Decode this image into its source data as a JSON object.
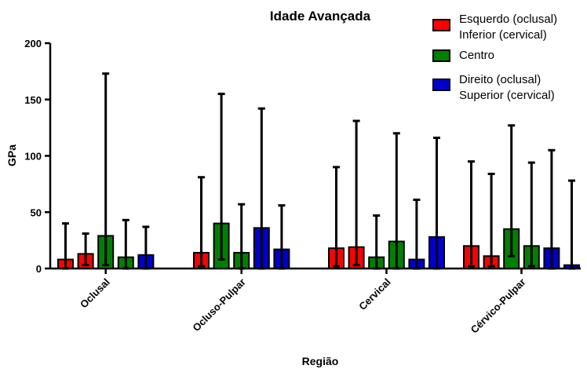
{
  "chart_data": {
    "type": "bar",
    "title": "Idade Avançada",
    "xlabel": "Região",
    "ylabel": "GPa",
    "ylim": [
      0,
      200
    ],
    "yticks": [
      0,
      50,
      100,
      150,
      200
    ],
    "grid": false,
    "legend_position": "top-right",
    "categories": [
      "Oclusal",
      "Ocluso-Pulpar",
      "Cervical",
      "Cérvico-Pulpar"
    ],
    "legend": [
      {
        "lines": [
          "Esquerdo (oclusal)",
          "Inferior (cervical)"
        ],
        "color": "#ff0000"
      },
      {
        "lines": [
          "Centro"
        ],
        "color": "#008000"
      },
      {
        "lines": [
          "Direito (oclusal)",
          "Superior (cervical)"
        ],
        "color": "#0000cc"
      }
    ],
    "groups": [
      {
        "category": "Oclusal",
        "bars": [
          {
            "series": "Esquerdo (oclusal) / Inferior (cervical)",
            "color": "#ff0000",
            "value": 8,
            "low": 0,
            "high": 40
          },
          {
            "series": "Esquerdo (oclusal) / Inferior (cervical)",
            "color": "#ff0000",
            "value": 13,
            "low": 3,
            "high": 31
          },
          {
            "series": "Centro",
            "color": "#008000",
            "value": 29,
            "low": 3,
            "high": 173
          },
          {
            "series": "Centro",
            "color": "#008000",
            "value": 10,
            "low": 0,
            "high": 43
          },
          {
            "series": "Direito (oclusal) / Superior (cervical)",
            "color": "#0000cc",
            "value": 12,
            "low": 0,
            "high": 37
          }
        ]
      },
      {
        "category": "Ocluso-Pulpar",
        "bars": [
          {
            "series": "Esquerdo (oclusal) / Inferior (cervical)",
            "color": "#ff0000",
            "value": 14,
            "low": 2,
            "high": 81
          },
          {
            "series": "Centro",
            "color": "#008000",
            "value": 40,
            "low": 8,
            "high": 155
          },
          {
            "series": "Centro",
            "color": "#008000",
            "value": 14,
            "low": 0,
            "high": 57
          },
          {
            "series": "Direito (oclusal) / Superior (cervical)",
            "color": "#0000cc",
            "value": 36,
            "low": 0,
            "high": 142
          },
          {
            "series": "Direito (oclusal) / Superior (cervical)",
            "color": "#0000cc",
            "value": 17,
            "low": 0,
            "high": 56
          }
        ]
      },
      {
        "category": "Cervical",
        "bars": [
          {
            "series": "Esquerdo (oclusal) / Inferior (cervical)",
            "color": "#ff0000",
            "value": 18,
            "low": 2,
            "high": 90
          },
          {
            "series": "Esquerdo (oclusal) / Inferior (cervical)",
            "color": "#ff0000",
            "value": 19,
            "low": 3,
            "high": 131
          },
          {
            "series": "Centro",
            "color": "#008000",
            "value": 10,
            "low": 0,
            "high": 47
          },
          {
            "series": "Centro",
            "color": "#008000",
            "value": 24,
            "low": 0,
            "high": 120
          },
          {
            "series": "Direito (oclusal) / Superior (cervical)",
            "color": "#0000cc",
            "value": 8,
            "low": 0,
            "high": 61
          },
          {
            "series": "Direito (oclusal) / Superior (cervical)",
            "color": "#0000cc",
            "value": 28,
            "low": 0,
            "high": 116
          }
        ]
      },
      {
        "category": "Cérvico-Pulpar",
        "bars": [
          {
            "series": "Esquerdo (oclusal) / Inferior (cervical)",
            "color": "#ff0000",
            "value": 20,
            "low": 2,
            "high": 95
          },
          {
            "series": "Esquerdo (oclusal) / Inferior (cervical)",
            "color": "#ff0000",
            "value": 11,
            "low": 2,
            "high": 84
          },
          {
            "series": "Centro",
            "color": "#008000",
            "value": 35,
            "low": 11,
            "high": 127
          },
          {
            "series": "Centro",
            "color": "#008000",
            "value": 20,
            "low": 2,
            "high": 94
          },
          {
            "series": "Direito (oclusal) / Superior (cervical)",
            "color": "#0000cc",
            "value": 18,
            "low": 0,
            "high": 105
          },
          {
            "series": "Direito (oclusal) / Superior (cervical)",
            "color": "#0000cc",
            "value": 3,
            "low": 0,
            "high": 78
          }
        ]
      }
    ]
  }
}
